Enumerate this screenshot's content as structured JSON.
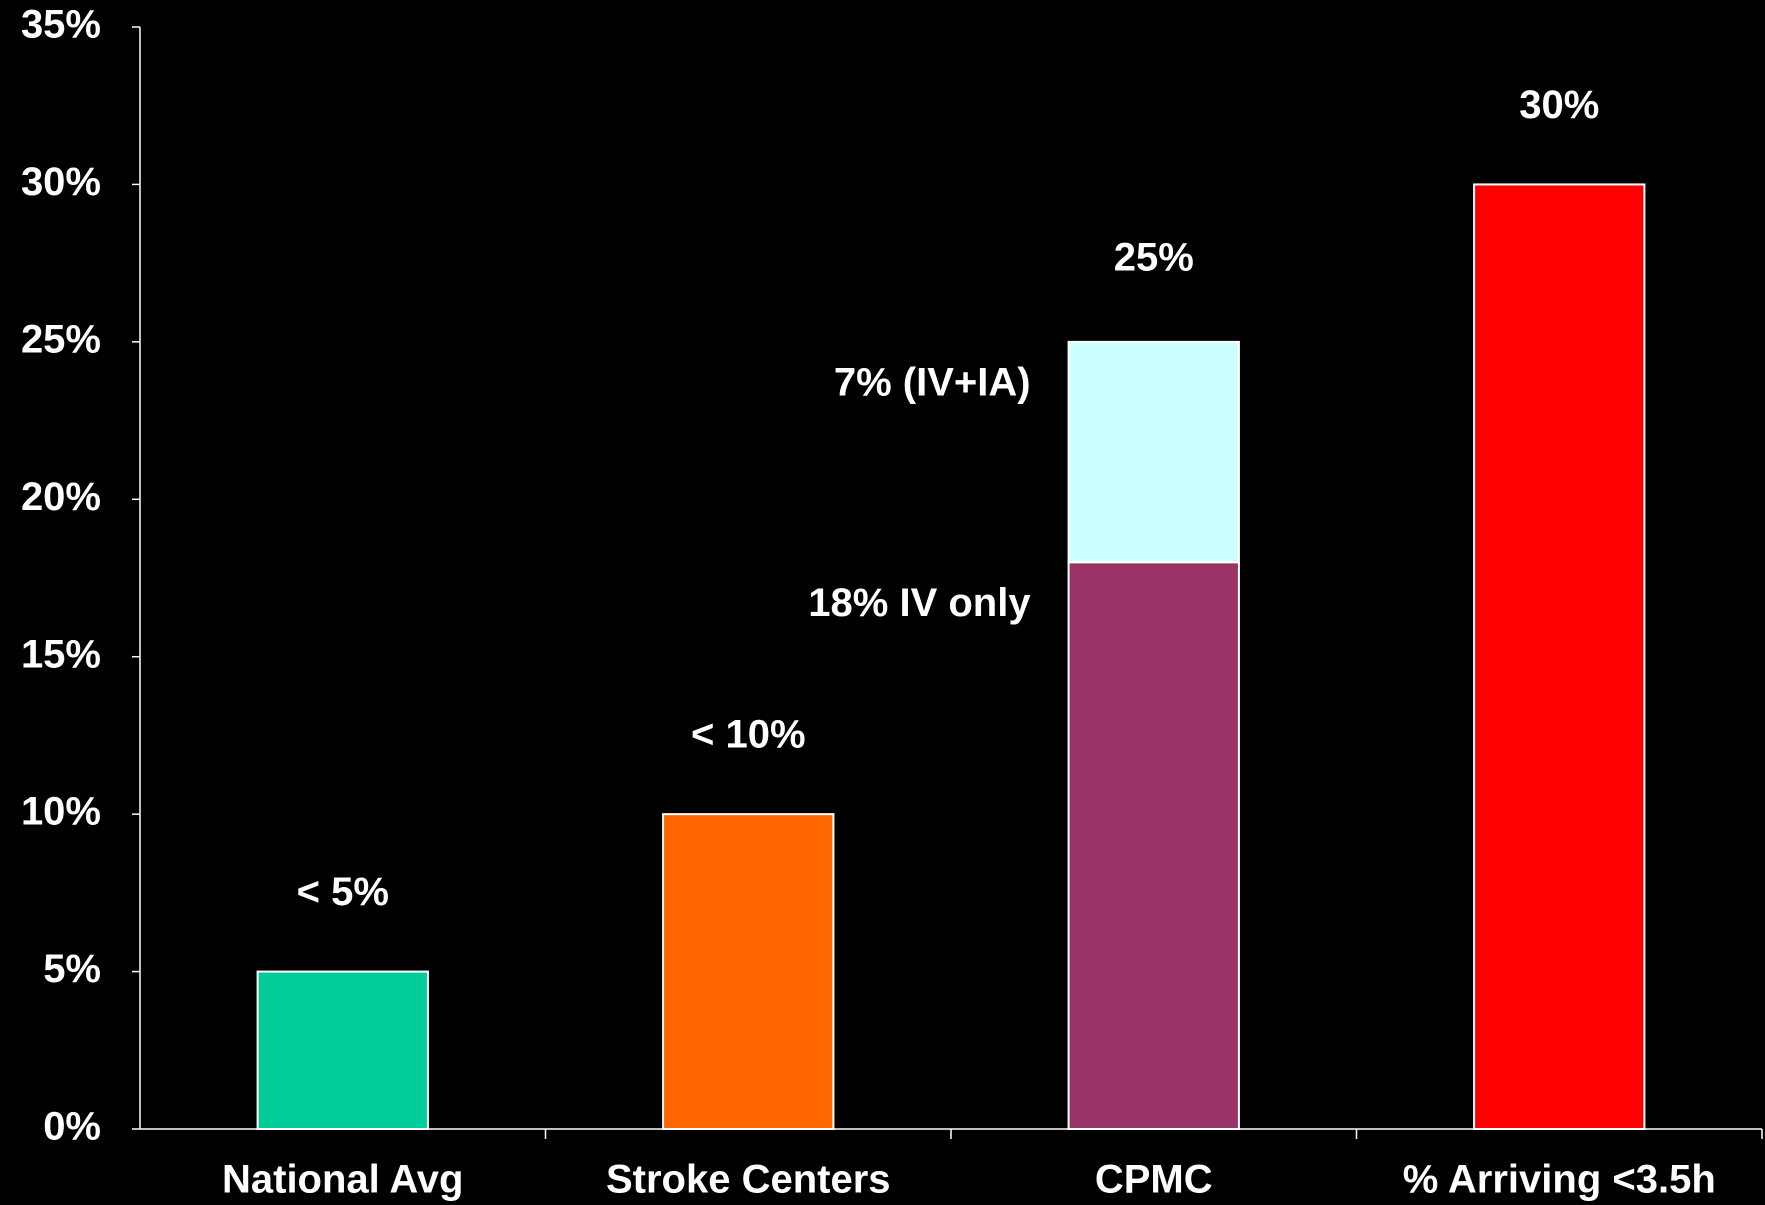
{
  "chart_data": {
    "type": "bar",
    "categories": [
      "National Avg",
      "Stroke Centers",
      "CPMC",
      "% Arriving <3.5h"
    ],
    "series": [
      {
        "values": [
          5,
          10,
          18,
          30
        ],
        "colors": [
          "#00CC99",
          "#FF6600",
          "#993366",
          "#FF0000"
        ],
        "value_labels": [
          "< 5%",
          "< 10%",
          "18% IV only",
          "30%"
        ]
      },
      {
        "values": [
          null,
          null,
          7,
          null
        ],
        "color": "#CCFFFF",
        "value_labels": [
          null,
          null,
          "7% (IV+IA)",
          null
        ]
      }
    ],
    "annotations": [
      {
        "text": "25%",
        "x": "CPMC",
        "y": 25
      }
    ],
    "ylim": [
      0,
      35
    ],
    "yticks": [
      {
        "value": 0,
        "label": "0%"
      },
      {
        "value": 5,
        "label": "5%"
      },
      {
        "value": 10,
        "label": "10%"
      },
      {
        "value": 15,
        "label": "15%"
      },
      {
        "value": 20,
        "label": "20%"
      },
      {
        "value": 25,
        "label": "25%"
      },
      {
        "value": 30,
        "label": "30%"
      },
      {
        "value": 35,
        "label": "35%"
      }
    ],
    "grid": false
  }
}
